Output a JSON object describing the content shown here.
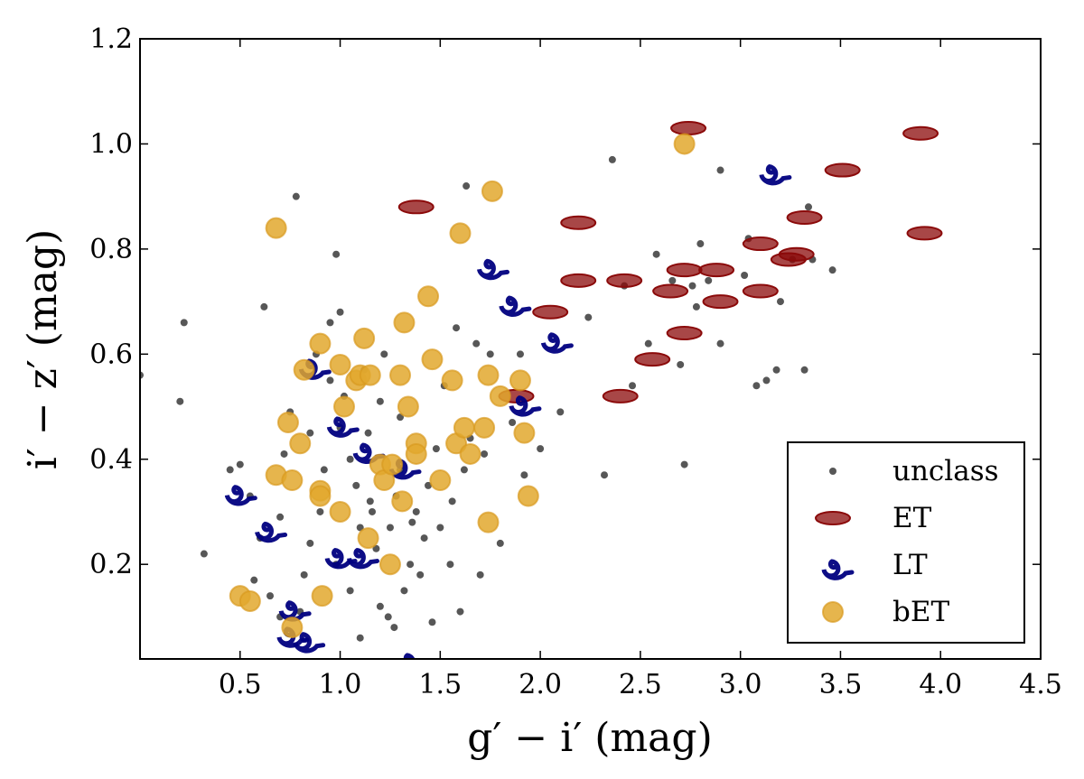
{
  "chart_data": {
    "type": "scatter",
    "xlabel": "g′ − i′ (mag)",
    "ylabel": "i′ − z′ (mag)",
    "xlim": [
      0.0,
      4.5
    ],
    "ylim": [
      0.02,
      1.2
    ],
    "xticks": [
      0.5,
      1.0,
      1.5,
      2.0,
      2.5,
      3.0,
      3.5,
      4.0,
      4.5
    ],
    "xtick_labels": [
      "0.5",
      "1.0",
      "1.5",
      "2.0",
      "2.5",
      "3.0",
      "3.5",
      "4.0",
      "4.5"
    ],
    "yticks": [
      0.2,
      0.4,
      0.6,
      0.8,
      1.0,
      1.2
    ],
    "ytick_labels": [
      "0.2",
      "0.4",
      "0.6",
      "0.8",
      "1.0",
      "1.2"
    ],
    "legend_position": "bottom-right",
    "series": [
      {
        "name": "unclass",
        "marker": "dot",
        "color": "#3a3a3a",
        "points": [
          [
            0.0,
            0.56
          ],
          [
            0.2,
            0.51
          ],
          [
            0.22,
            0.66
          ],
          [
            0.32,
            0.22
          ],
          [
            0.45,
            0.38
          ],
          [
            0.5,
            0.39
          ],
          [
            0.55,
            0.33
          ],
          [
            0.57,
            0.17
          ],
          [
            0.6,
            0.25
          ],
          [
            0.62,
            0.69
          ],
          [
            0.65,
            0.14
          ],
          [
            0.7,
            0.1
          ],
          [
            0.7,
            0.29
          ],
          [
            0.72,
            0.41
          ],
          [
            0.75,
            0.49
          ],
          [
            0.78,
            0.9
          ],
          [
            0.8,
            0.11
          ],
          [
            0.82,
            0.18
          ],
          [
            0.85,
            0.24
          ],
          [
            0.85,
            0.45
          ],
          [
            0.88,
            0.6
          ],
          [
            0.9,
            0.3
          ],
          [
            0.92,
            0.38
          ],
          [
            0.95,
            0.55
          ],
          [
            0.95,
            0.66
          ],
          [
            0.98,
            0.2
          ],
          [
            0.98,
            0.79
          ],
          [
            1.0,
            0.46
          ],
          [
            1.0,
            0.68
          ],
          [
            1.02,
            0.52
          ],
          [
            1.05,
            0.4
          ],
          [
            1.05,
            0.15
          ],
          [
            1.08,
            0.35
          ],
          [
            1.1,
            0.06
          ],
          [
            1.1,
            0.27
          ],
          [
            1.12,
            0.57
          ],
          [
            1.14,
            0.45
          ],
          [
            1.15,
            0.32
          ],
          [
            1.16,
            0.3
          ],
          [
            1.18,
            0.23
          ],
          [
            1.2,
            0.12
          ],
          [
            1.2,
            0.51
          ],
          [
            1.22,
            0.6
          ],
          [
            1.24,
            0.1
          ],
          [
            1.25,
            0.27
          ],
          [
            1.27,
            0.08
          ],
          [
            1.28,
            0.33
          ],
          [
            1.3,
            0.38
          ],
          [
            1.3,
            0.48
          ],
          [
            1.32,
            0.15
          ],
          [
            1.35,
            0.2
          ],
          [
            1.36,
            0.28
          ],
          [
            1.38,
            0.3
          ],
          [
            1.4,
            0.18
          ],
          [
            1.42,
            0.25
          ],
          [
            1.44,
            0.35
          ],
          [
            1.46,
            0.09
          ],
          [
            1.48,
            0.42
          ],
          [
            1.5,
            0.27
          ],
          [
            1.52,
            0.54
          ],
          [
            1.55,
            0.2
          ],
          [
            1.56,
            0.32
          ],
          [
            1.58,
            0.65
          ],
          [
            1.6,
            0.11
          ],
          [
            1.62,
            0.38
          ],
          [
            1.63,
            0.92
          ],
          [
            1.65,
            0.44
          ],
          [
            1.68,
            0.62
          ],
          [
            1.7,
            0.18
          ],
          [
            1.72,
            0.41
          ],
          [
            1.75,
            0.6
          ],
          [
            1.8,
            0.24
          ],
          [
            1.86,
            0.47
          ],
          [
            1.9,
            0.6
          ],
          [
            1.92,
            0.37
          ],
          [
            2.0,
            0.42
          ],
          [
            2.1,
            0.49
          ],
          [
            2.24,
            0.67
          ],
          [
            2.32,
            0.37
          ],
          [
            2.36,
            0.97
          ],
          [
            2.42,
            0.73
          ],
          [
            2.46,
            0.54
          ],
          [
            2.54,
            0.62
          ],
          [
            2.58,
            0.79
          ],
          [
            2.66,
            0.74
          ],
          [
            2.7,
            0.58
          ],
          [
            2.72,
            0.39
          ],
          [
            2.76,
            0.73
          ],
          [
            2.78,
            0.69
          ],
          [
            2.8,
            0.81
          ],
          [
            2.84,
            0.74
          ],
          [
            2.9,
            0.62
          ],
          [
            2.9,
            0.95
          ],
          [
            3.02,
            0.75
          ],
          [
            3.04,
            0.82
          ],
          [
            3.08,
            0.54
          ],
          [
            3.13,
            0.55
          ],
          [
            3.18,
            0.57
          ],
          [
            3.2,
            0.7
          ],
          [
            3.26,
            0.78
          ],
          [
            3.32,
            0.57
          ],
          [
            3.34,
            0.88
          ],
          [
            3.36,
            0.78
          ],
          [
            3.46,
            0.76
          ]
        ]
      },
      {
        "name": "ET",
        "marker": "ellipse",
        "color": "#8b0a0a",
        "points": [
          [
            1.38,
            0.88
          ],
          [
            1.88,
            0.52
          ],
          [
            2.05,
            0.68
          ],
          [
            2.19,
            0.85
          ],
          [
            2.19,
            0.74
          ],
          [
            2.4,
            0.52
          ],
          [
            2.42,
            0.74
          ],
          [
            2.56,
            0.59
          ],
          [
            2.65,
            0.72
          ],
          [
            2.72,
            0.64
          ],
          [
            2.72,
            0.76
          ],
          [
            2.74,
            1.03
          ],
          [
            2.88,
            0.76
          ],
          [
            2.9,
            0.7
          ],
          [
            3.1,
            0.81
          ],
          [
            3.1,
            0.72
          ],
          [
            3.24,
            0.78
          ],
          [
            3.28,
            0.79
          ],
          [
            3.32,
            0.86
          ],
          [
            3.51,
            0.95
          ],
          [
            3.9,
            1.02
          ],
          [
            3.92,
            0.83
          ]
        ]
      },
      {
        "name": "LT",
        "marker": "spiral",
        "color": "#00007f",
        "points": [
          [
            0.48,
            0.34
          ],
          [
            0.63,
            0.27
          ],
          [
            0.74,
            0.07
          ],
          [
            0.75,
            0.12
          ],
          [
            0.82,
            0.06
          ],
          [
            0.85,
            0.58
          ],
          [
            0.98,
            0.22
          ],
          [
            0.99,
            0.47
          ],
          [
            1.09,
            0.22
          ],
          [
            1.12,
            0.42
          ],
          [
            1.3,
            0.39
          ],
          [
            1.34,
            0.02
          ],
          [
            1.74,
            0.77
          ],
          [
            1.85,
            0.7
          ],
          [
            1.9,
            0.51
          ],
          [
            2.06,
            0.63
          ],
          [
            3.15,
            0.95
          ]
        ]
      },
      {
        "name": "bET",
        "marker": "circle",
        "color": "#e2a82e",
        "points": [
          [
            0.5,
            0.14
          ],
          [
            0.55,
            0.13
          ],
          [
            0.68,
            0.37
          ],
          [
            0.68,
            0.84
          ],
          [
            0.74,
            0.47
          ],
          [
            0.76,
            0.36
          ],
          [
            0.76,
            0.08
          ],
          [
            0.8,
            0.43
          ],
          [
            0.82,
            0.57
          ],
          [
            0.9,
            0.34
          ],
          [
            0.9,
            0.33
          ],
          [
            0.9,
            0.62
          ],
          [
            0.91,
            0.14
          ],
          [
            1.0,
            0.58
          ],
          [
            1.0,
            0.3
          ],
          [
            1.02,
            0.5
          ],
          [
            1.08,
            0.55
          ],
          [
            1.1,
            0.56
          ],
          [
            1.12,
            0.63
          ],
          [
            1.14,
            0.25
          ],
          [
            1.15,
            0.56
          ],
          [
            1.2,
            0.39
          ],
          [
            1.22,
            0.36
          ],
          [
            1.25,
            0.2
          ],
          [
            1.26,
            0.39
          ],
          [
            1.3,
            0.56
          ],
          [
            1.31,
            0.32
          ],
          [
            1.32,
            0.66
          ],
          [
            1.34,
            0.5
          ],
          [
            1.38,
            0.43
          ],
          [
            1.38,
            0.41
          ],
          [
            1.44,
            0.71
          ],
          [
            1.46,
            0.59
          ],
          [
            1.5,
            0.36
          ],
          [
            1.56,
            0.55
          ],
          [
            1.58,
            0.43
          ],
          [
            1.6,
            0.83
          ],
          [
            1.62,
            0.46
          ],
          [
            1.65,
            0.41
          ],
          [
            1.72,
            0.46
          ],
          [
            1.74,
            0.28
          ],
          [
            1.74,
            0.56
          ],
          [
            1.76,
            0.91
          ],
          [
            1.8,
            0.52
          ],
          [
            1.9,
            0.55
          ],
          [
            1.92,
            0.45
          ],
          [
            1.94,
            0.33
          ],
          [
            2.72,
            1.0
          ]
        ]
      }
    ]
  }
}
